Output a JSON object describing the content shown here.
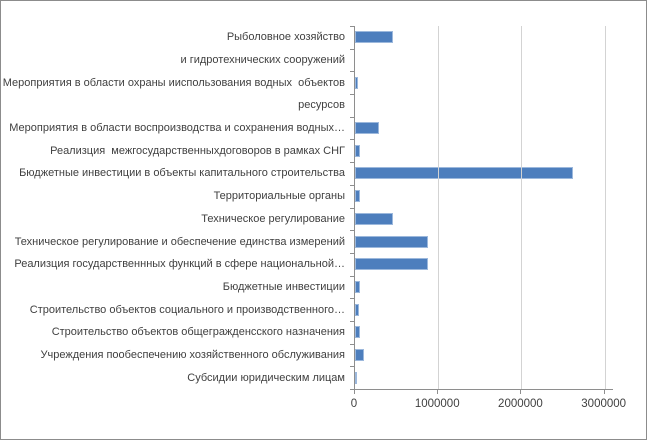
{
  "chart_data": {
    "type": "bar",
    "orientation": "horizontal",
    "title": "",
    "xlabel": "",
    "ylabel": "",
    "grid": true,
    "legend": false,
    "bar_color": "#4d7ebd",
    "bar_border_color": "#9cb8dc",
    "categories": [
      "Рыболовное хозяйство",
      "и гидротехнических сооружений",
      "Мероприятия в области охраны ииспользования водных  объектов",
      "ресурсов",
      "Мероприятия в области воспроизводства и сохранения водных…",
      "Реализция  межгосударственныхдоговоров в рамках СНГ",
      "Бюджетные инвестиции в объекты капитального строительства",
      "Территориальные органы",
      "Техническое регулирование",
      "Техническое регулирование и обеспечение единства измерений",
      "Реализция государственнных функций в сфере национальной…",
      "Бюджетные инвестиции",
      "Строительство объектов социального и производственного…",
      "Строительство объектов общегражденсского назначения",
      "Учреждения пообеспечению хозяйственного обслуживания",
      "Субсидии юридическим лицам"
    ],
    "values": [
      460000,
      0,
      40000,
      0,
      290000,
      55000,
      2620000,
      60000,
      460000,
      880000,
      880000,
      55000,
      50000,
      55000,
      110000,
      25000
    ],
    "xlim": [
      0,
      3100000
    ],
    "x_ticks": [
      0,
      1000000,
      2000000,
      3000000
    ],
    "x_tick_labels": [
      "0",
      "1000000",
      "2000000",
      "3000000"
    ]
  }
}
